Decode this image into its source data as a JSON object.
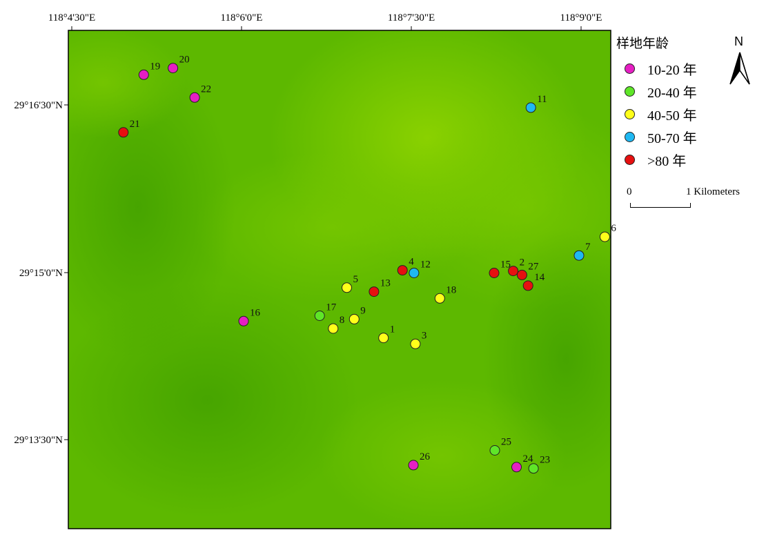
{
  "axes": {
    "longitude_labels": [
      "118°4'30\"E",
      "118°6'0\"E",
      "118°7'30\"E",
      "118°9'0\"E"
    ],
    "latitude_labels": [
      "29°16'30\"N",
      "29°15'0\"N",
      "29°13'30\"N"
    ]
  },
  "legend": {
    "title": "样地年龄",
    "items": [
      {
        "key": "a",
        "label": "10-20 年",
        "color": "#e61fc3"
      },
      {
        "key": "b",
        "label": "20-40 年",
        "color": "#5fe628"
      },
      {
        "key": "c",
        "label": "40-50 年",
        "color": "#ffff1a"
      },
      {
        "key": "d",
        "label": "50-70 年",
        "color": "#1fb8f2"
      },
      {
        "key": "e",
        "label": ">80 年",
        "color": "#e61010"
      }
    ]
  },
  "north_arrow": {
    "label": "N"
  },
  "scale_bar": {
    "start": "0",
    "end": "1 Kilometers"
  },
  "plots": [
    {
      "id": "1",
      "lon": 118.1209,
      "lat": 29.2402,
      "age": "c"
    },
    {
      "id": "2",
      "lon": 118.14,
      "lat": 29.2502,
      "age": "e"
    },
    {
      "id": "3",
      "lon": 118.1256,
      "lat": 29.2393,
      "age": "c"
    },
    {
      "id": "4",
      "lon": 118.1237,
      "lat": 29.2503,
      "age": "e"
    },
    {
      "id": "5",
      "lon": 118.1155,
      "lat": 29.2477,
      "age": "c"
    },
    {
      "id": "6",
      "lon": 118.1535,
      "lat": 29.2553,
      "age": "c"
    },
    {
      "id": "7",
      "lon": 118.1497,
      "lat": 29.2525,
      "age": "d"
    },
    {
      "id": "8",
      "lon": 118.1135,
      "lat": 29.2416,
      "age": "c"
    },
    {
      "id": "9",
      "lon": 118.1166,
      "lat": 29.243,
      "age": "c"
    },
    {
      "id": "11",
      "lon": 118.1426,
      "lat": 29.2746,
      "age": "d"
    },
    {
      "id": "12",
      "lon": 118.1254,
      "lat": 29.2499,
      "age": "d"
    },
    {
      "id": "13",
      "lon": 118.1195,
      "lat": 29.2471,
      "age": "e"
    },
    {
      "id": "14",
      "lon": 118.1422,
      "lat": 29.248,
      "age": "e"
    },
    {
      "id": "15",
      "lon": 118.1372,
      "lat": 29.2499,
      "age": "e"
    },
    {
      "id": "16",
      "lon": 118.1003,
      "lat": 29.2427,
      "age": "a"
    },
    {
      "id": "17",
      "lon": 118.1115,
      "lat": 29.2435,
      "age": "b"
    },
    {
      "id": "18",
      "lon": 118.1292,
      "lat": 29.2461,
      "age": "c"
    },
    {
      "id": "19",
      "lon": 118.0856,
      "lat": 29.2795,
      "age": "a"
    },
    {
      "id": "20",
      "lon": 118.0899,
      "lat": 29.2805,
      "age": "a"
    },
    {
      "id": "21",
      "lon": 118.0826,
      "lat": 29.2709,
      "age": "e"
    },
    {
      "id": "22",
      "lon": 118.0931,
      "lat": 29.2761,
      "age": "a"
    },
    {
      "id": "23",
      "lon": 118.143,
      "lat": 29.2207,
      "age": "b"
    },
    {
      "id": "24",
      "lon": 118.1405,
      "lat": 29.2209,
      "age": "a"
    },
    {
      "id": "25",
      "lon": 118.1373,
      "lat": 29.2234,
      "age": "b"
    },
    {
      "id": "26",
      "lon": 118.1253,
      "lat": 29.2212,
      "age": "a"
    },
    {
      "id": "27",
      "lon": 118.1413,
      "lat": 29.2496,
      "age": "e"
    }
  ]
}
